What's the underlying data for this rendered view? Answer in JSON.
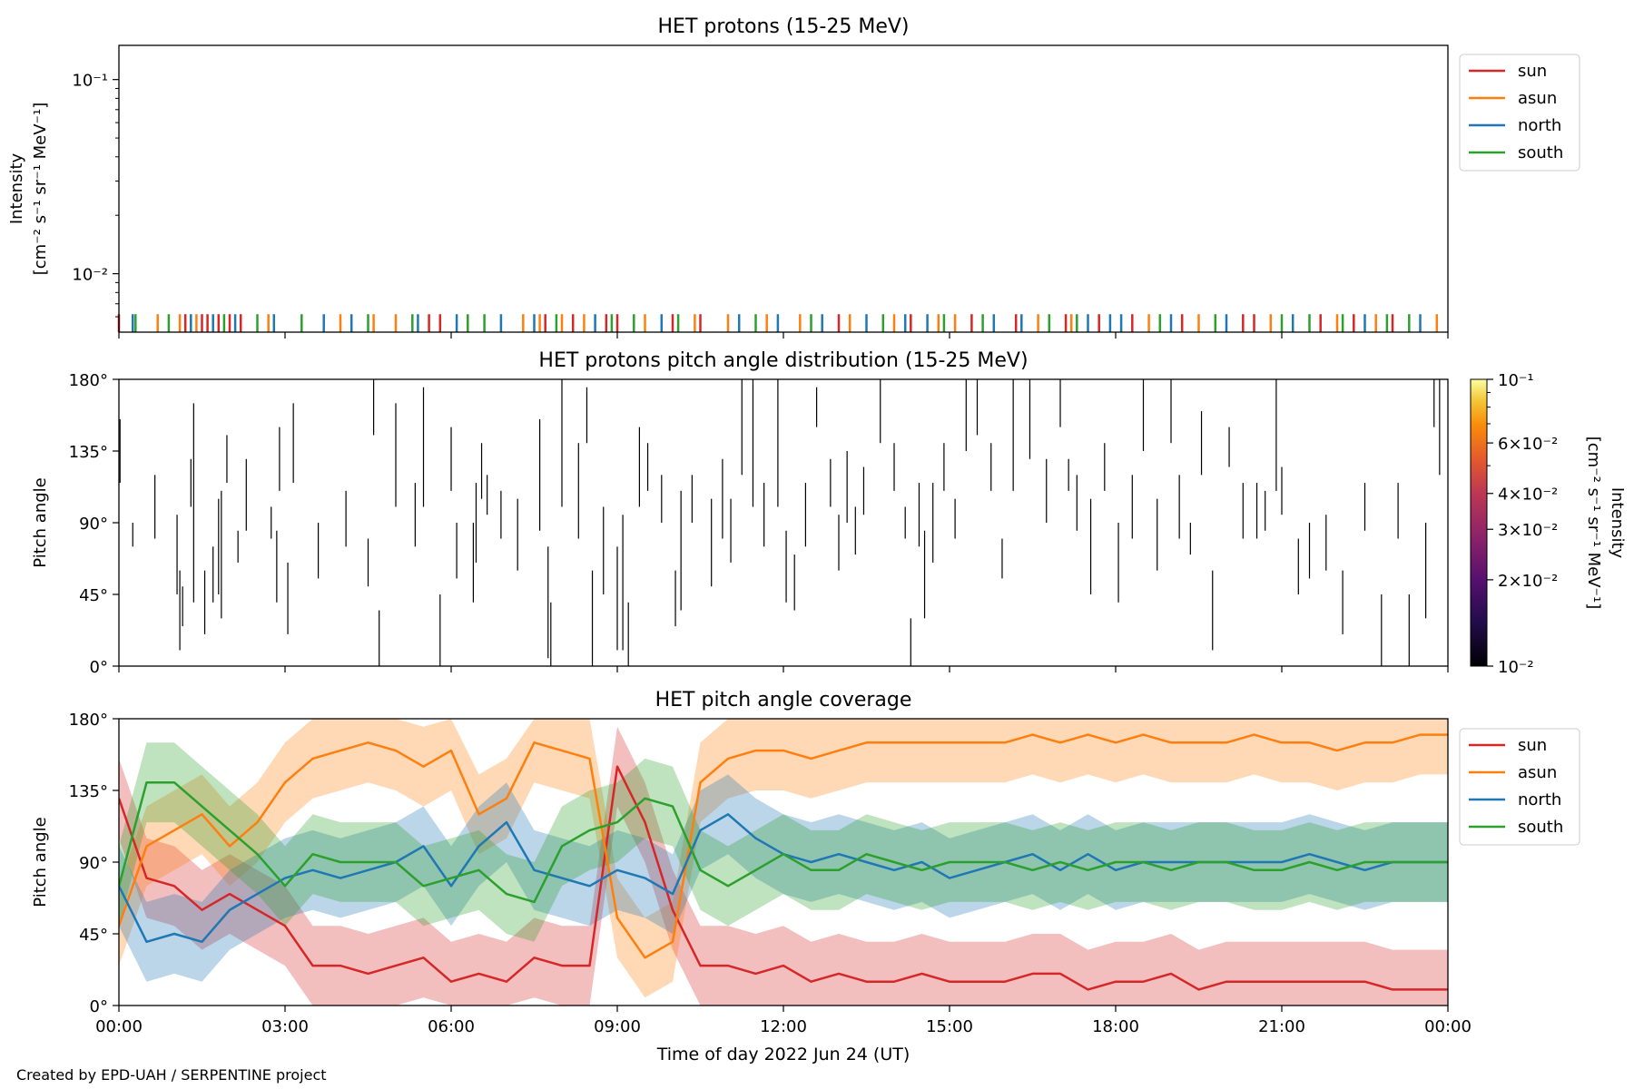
{
  "footer": {
    "credit": "Created by EPD-UAH / SERPENTINE project"
  },
  "colors": {
    "sun": "#d62728",
    "asun": "#ff7f0e",
    "north": "#1f77b4",
    "south": "#2ca02c"
  },
  "chart_data": [
    {
      "type": "line",
      "title": "HET protons (15-25 MeV)",
      "ylabel": "Intensity",
      "ylabel_units": "[cm⁻² s⁻¹ sr⁻¹ MeV⁻¹]",
      "yscale": "log",
      "ylim": [
        0.005,
        0.15
      ],
      "ytick_labels": [
        "10⁻¹",
        "10⁻²"
      ],
      "xlim_hours": [
        0,
        24
      ],
      "legend": {
        "placement": "upper-right-outside",
        "entries": [
          "sun",
          "asun",
          "north",
          "south"
        ]
      },
      "series": [
        {
          "name": "sun",
          "x_hours": [
            0.0,
            1.2,
            1.5,
            1.6,
            1.8,
            2.0,
            2.2,
            5.6,
            5.8,
            7.7,
            8.2,
            8.8,
            9.0,
            10.0,
            10.5,
            13.0,
            14.3,
            15.4,
            16.2,
            17.1,
            17.7,
            18.3,
            19.2,
            20.3,
            20.5,
            21.7,
            22.3,
            23.0
          ],
          "y_level": 0.0058
        },
        {
          "name": "asun",
          "x_hours": [
            0.7,
            1.1,
            1.4,
            2.7,
            4.0,
            4.6,
            5.0,
            7.3,
            7.6,
            8.0,
            8.4,
            9.5,
            10.4,
            11.0,
            11.7,
            12.3,
            13.2,
            14.0,
            14.8,
            15.1,
            16.6,
            17.2,
            18.6,
            19.5,
            20.8,
            22.0,
            22.7,
            23.8
          ],
          "y_level": 0.0058
        },
        {
          "name": "north",
          "x_hours": [
            0.25,
            1.3,
            1.7,
            2.1,
            2.8,
            3.7,
            4.2,
            5.4,
            6.1,
            6.9,
            7.5,
            8.6,
            9.8,
            11.2,
            11.9,
            12.7,
            13.5,
            14.2,
            14.6,
            15.8,
            16.3,
            17.5,
            17.9,
            18.1,
            19.0,
            20.0,
            21.2,
            22.5,
            23.5
          ],
          "y_level": 0.0058
        },
        {
          "name": "south",
          "x_hours": [
            0.3,
            0.9,
            1.9,
            2.5,
            3.3,
            4.5,
            5.3,
            6.3,
            6.6,
            7.9,
            8.9,
            9.3,
            10.1,
            11.5,
            12.5,
            13.8,
            14.9,
            15.6,
            16.8,
            17.3,
            18.8,
            19.8,
            21.0,
            21.5,
            22.1,
            22.9,
            23.3
          ],
          "y_level": 0.0058
        }
      ]
    },
    {
      "type": "heatmap",
      "title": "HET protons pitch angle distribution (15-25 MeV)",
      "ylabel": "Pitch angle",
      "ylim_deg": [
        0,
        180
      ],
      "ytick_labels": [
        "180°",
        "135°",
        "90°",
        "45°",
        "0°"
      ],
      "xlim_hours": [
        0,
        24
      ],
      "colorbar": {
        "label": "Intensity",
        "units": "[cm⁻² s⁻¹ sr⁻¹ MeV⁻¹]",
        "scale": "log",
        "range": [
          0.01,
          0.1
        ],
        "tick_labels": [
          "10⁻¹",
          "6×10⁻²",
          "4×10⁻²",
          "3×10⁻²",
          "2×10⁻²",
          "10⁻²"
        ]
      },
      "segments": [
        [
          0.02,
          115,
          155
        ],
        [
          0.25,
          75,
          90
        ],
        [
          0.65,
          80,
          120
        ],
        [
          1.05,
          45,
          95
        ],
        [
          1.1,
          10,
          60
        ],
        [
          1.15,
          25,
          50
        ],
        [
          1.3,
          100,
          130
        ],
        [
          1.35,
          40,
          165
        ],
        [
          1.55,
          20,
          60
        ],
        [
          1.7,
          40,
          75
        ],
        [
          1.8,
          45,
          105
        ],
        [
          1.85,
          30,
          110
        ],
        [
          1.95,
          115,
          145
        ],
        [
          2.15,
          65,
          85
        ],
        [
          2.3,
          85,
          130
        ],
        [
          2.75,
          80,
          100
        ],
        [
          2.85,
          40,
          85
        ],
        [
          2.9,
          110,
          150
        ],
        [
          3.05,
          20,
          65
        ],
        [
          3.15,
          115,
          165
        ],
        [
          3.6,
          55,
          90
        ],
        [
          4.1,
          75,
          110
        ],
        [
          4.5,
          50,
          80
        ],
        [
          4.6,
          145,
          180
        ],
        [
          4.7,
          0,
          35
        ],
        [
          5.0,
          100,
          165
        ],
        [
          5.35,
          75,
          115
        ],
        [
          5.5,
          100,
          175
        ],
        [
          5.8,
          0,
          45
        ],
        [
          6.0,
          110,
          150
        ],
        [
          6.1,
          55,
          90
        ],
        [
          6.4,
          40,
          90
        ],
        [
          6.45,
          65,
          115
        ],
        [
          6.55,
          105,
          140
        ],
        [
          6.65,
          95,
          120
        ],
        [
          6.9,
          80,
          110
        ],
        [
          7.2,
          60,
          105
        ],
        [
          7.6,
          85,
          155
        ],
        [
          7.75,
          5,
          75
        ],
        [
          7.8,
          0,
          40
        ],
        [
          8.0,
          100,
          180
        ],
        [
          8.3,
          80,
          140
        ],
        [
          8.45,
          140,
          175
        ],
        [
          8.55,
          0,
          60
        ],
        [
          8.75,
          45,
          100
        ],
        [
          9.0,
          10,
          75
        ],
        [
          9.1,
          10,
          95
        ],
        [
          9.2,
          0,
          40
        ],
        [
          9.4,
          100,
          150
        ],
        [
          9.55,
          110,
          140
        ],
        [
          9.8,
          90,
          120
        ],
        [
          10.05,
          25,
          60
        ],
        [
          10.15,
          35,
          110
        ],
        [
          10.35,
          90,
          120
        ],
        [
          10.7,
          50,
          105
        ],
        [
          10.9,
          80,
          130
        ],
        [
          11.05,
          65,
          105
        ],
        [
          11.25,
          120,
          180
        ],
        [
          11.45,
          100,
          180
        ],
        [
          11.65,
          75,
          115
        ],
        [
          11.9,
          100,
          180
        ],
        [
          12.05,
          40,
          85
        ],
        [
          12.2,
          35,
          70
        ],
        [
          12.4,
          75,
          115
        ],
        [
          12.6,
          150,
          175
        ],
        [
          12.85,
          100,
          130
        ],
        [
          13.0,
          60,
          95
        ],
        [
          13.15,
          90,
          135
        ],
        [
          13.3,
          70,
          100
        ],
        [
          13.45,
          95,
          125
        ],
        [
          13.75,
          140,
          180
        ],
        [
          14.0,
          110,
          140
        ],
        [
          14.2,
          80,
          100
        ],
        [
          14.3,
          0,
          30
        ],
        [
          14.45,
          75,
          115
        ],
        [
          14.55,
          30,
          85
        ],
        [
          14.7,
          65,
          115
        ],
        [
          14.9,
          110,
          140
        ],
        [
          15.1,
          80,
          105
        ],
        [
          15.3,
          135,
          180
        ],
        [
          15.5,
          145,
          180
        ],
        [
          15.75,
          110,
          140
        ],
        [
          15.95,
          55,
          80
        ],
        [
          16.15,
          110,
          180
        ],
        [
          16.45,
          130,
          180
        ],
        [
          16.75,
          90,
          130
        ],
        [
          17.0,
          150,
          180
        ],
        [
          17.15,
          110,
          130
        ],
        [
          17.3,
          85,
          120
        ],
        [
          17.55,
          45,
          105
        ],
        [
          17.8,
          110,
          140
        ],
        [
          18.05,
          40,
          90
        ],
        [
          18.3,
          80,
          120
        ],
        [
          18.5,
          135,
          180
        ],
        [
          18.75,
          60,
          105
        ],
        [
          19.0,
          140,
          180
        ],
        [
          19.15,
          80,
          120
        ],
        [
          19.35,
          70,
          90
        ],
        [
          19.55,
          120,
          160
        ],
        [
          19.75,
          10,
          60
        ],
        [
          20.05,
          125,
          150
        ],
        [
          20.3,
          80,
          115
        ],
        [
          20.55,
          80,
          115
        ],
        [
          20.7,
          85,
          110
        ],
        [
          20.9,
          110,
          180
        ],
        [
          21.0,
          95,
          125
        ],
        [
          21.3,
          45,
          80
        ],
        [
          21.5,
          55,
          90
        ],
        [
          21.8,
          60,
          95
        ],
        [
          22.1,
          20,
          60
        ],
        [
          22.5,
          85,
          115
        ],
        [
          22.8,
          0,
          45
        ],
        [
          23.1,
          80,
          115
        ],
        [
          23.3,
          0,
          45
        ],
        [
          23.6,
          30,
          90
        ],
        [
          23.75,
          150,
          180
        ],
        [
          23.85,
          120,
          180
        ]
      ]
    },
    {
      "type": "area",
      "title": "HET pitch angle coverage",
      "ylabel": "Pitch angle",
      "xlabel": "Time of day 2022 Jun 24 (UT)",
      "ylim_deg": [
        0,
        180
      ],
      "ytick_labels": [
        "180°",
        "135°",
        "90°",
        "45°",
        "0°"
      ],
      "xlim_hours": [
        0,
        24
      ],
      "xtick_labels": [
        "00:00",
        "03:00",
        "06:00",
        "09:00",
        "12:00",
        "15:00",
        "18:00",
        "21:00",
        "00:00"
      ],
      "legend": {
        "placement": "upper-right-outside",
        "entries": [
          "sun",
          "asun",
          "north",
          "south"
        ]
      },
      "x_hours": [
        0,
        0.5,
        1,
        1.5,
        2,
        2.5,
        3,
        3.5,
        4,
        4.5,
        5,
        5.5,
        6,
        6.5,
        7,
        7.5,
        8,
        8.5,
        9,
        9.5,
        10,
        10.5,
        11,
        11.5,
        12,
        12.5,
        13,
        13.5,
        14,
        14.5,
        15,
        15.5,
        16,
        16.5,
        17,
        17.5,
        18,
        18.5,
        19,
        19.5,
        20,
        20.5,
        21,
        21.5,
        22,
        22.5,
        23,
        23.5,
        24
      ],
      "series": [
        {
          "name": "sun",
          "band_halfwidth_deg": 25,
          "values": [
            130,
            80,
            75,
            60,
            70,
            60,
            50,
            25,
            25,
            20,
            25,
            30,
            15,
            20,
            15,
            30,
            25,
            25,
            150,
            115,
            60,
            25,
            25,
            20,
            25,
            15,
            20,
            15,
            15,
            20,
            15,
            15,
            15,
            20,
            20,
            10,
            15,
            15,
            20,
            10,
            15,
            15,
            15,
            15,
            15,
            15,
            10,
            10,
            10
          ]
        },
        {
          "name": "asun",
          "band_halfwidth_deg": 25,
          "values": [
            50,
            100,
            110,
            120,
            100,
            115,
            140,
            155,
            160,
            165,
            160,
            150,
            160,
            120,
            130,
            165,
            160,
            155,
            55,
            30,
            40,
            140,
            155,
            160,
            160,
            155,
            160,
            165,
            165,
            165,
            165,
            165,
            165,
            170,
            165,
            170,
            165,
            170,
            165,
            165,
            165,
            170,
            165,
            165,
            160,
            165,
            165,
            170,
            170
          ]
        },
        {
          "name": "north",
          "band_halfwidth_deg": 25,
          "values": [
            75,
            40,
            45,
            40,
            60,
            70,
            80,
            85,
            80,
            85,
            90,
            100,
            75,
            100,
            115,
            85,
            80,
            75,
            85,
            80,
            70,
            110,
            120,
            105,
            95,
            90,
            95,
            90,
            85,
            90,
            80,
            85,
            90,
            95,
            85,
            95,
            85,
            90,
            90,
            90,
            90,
            90,
            90,
            95,
            90,
            85,
            90,
            90,
            90
          ]
        },
        {
          "name": "south",
          "band_halfwidth_deg": 25,
          "values": [
            75,
            140,
            140,
            125,
            110,
            95,
            75,
            95,
            90,
            90,
            90,
            75,
            80,
            85,
            70,
            65,
            100,
            110,
            115,
            130,
            125,
            85,
            75,
            85,
            95,
            85,
            85,
            95,
            90,
            85,
            90,
            90,
            90,
            85,
            90,
            85,
            90,
            90,
            85,
            90,
            90,
            85,
            85,
            90,
            85,
            90,
            90,
            90,
            90
          ]
        }
      ]
    }
  ]
}
